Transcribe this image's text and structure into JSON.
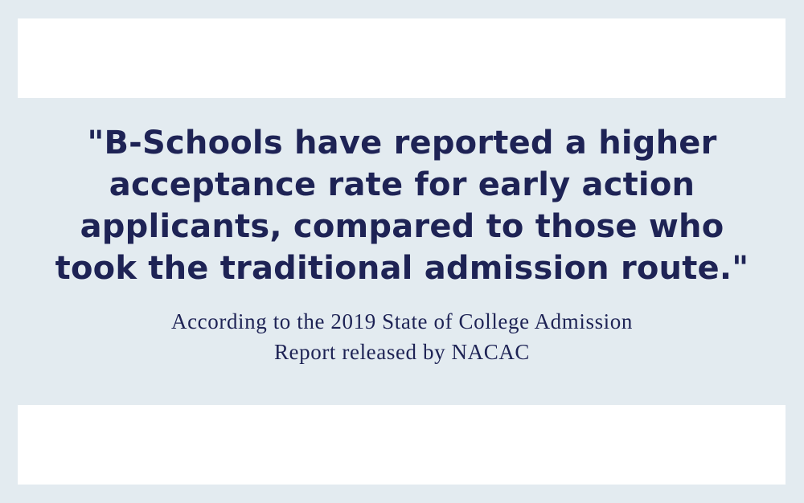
{
  "quote": {
    "lines": [
      "\"B-Schools have reported a higher",
      "acceptance rate for early action",
      "applicants, compared to those who",
      "took the traditional admission route.\""
    ]
  },
  "citation": {
    "lines": [
      "According to the 2019 State of College Admission",
      "Report released by NACAC"
    ]
  },
  "colors": {
    "background": "#e3ebf0",
    "panel": "#ffffff",
    "text": "#1e2355"
  }
}
